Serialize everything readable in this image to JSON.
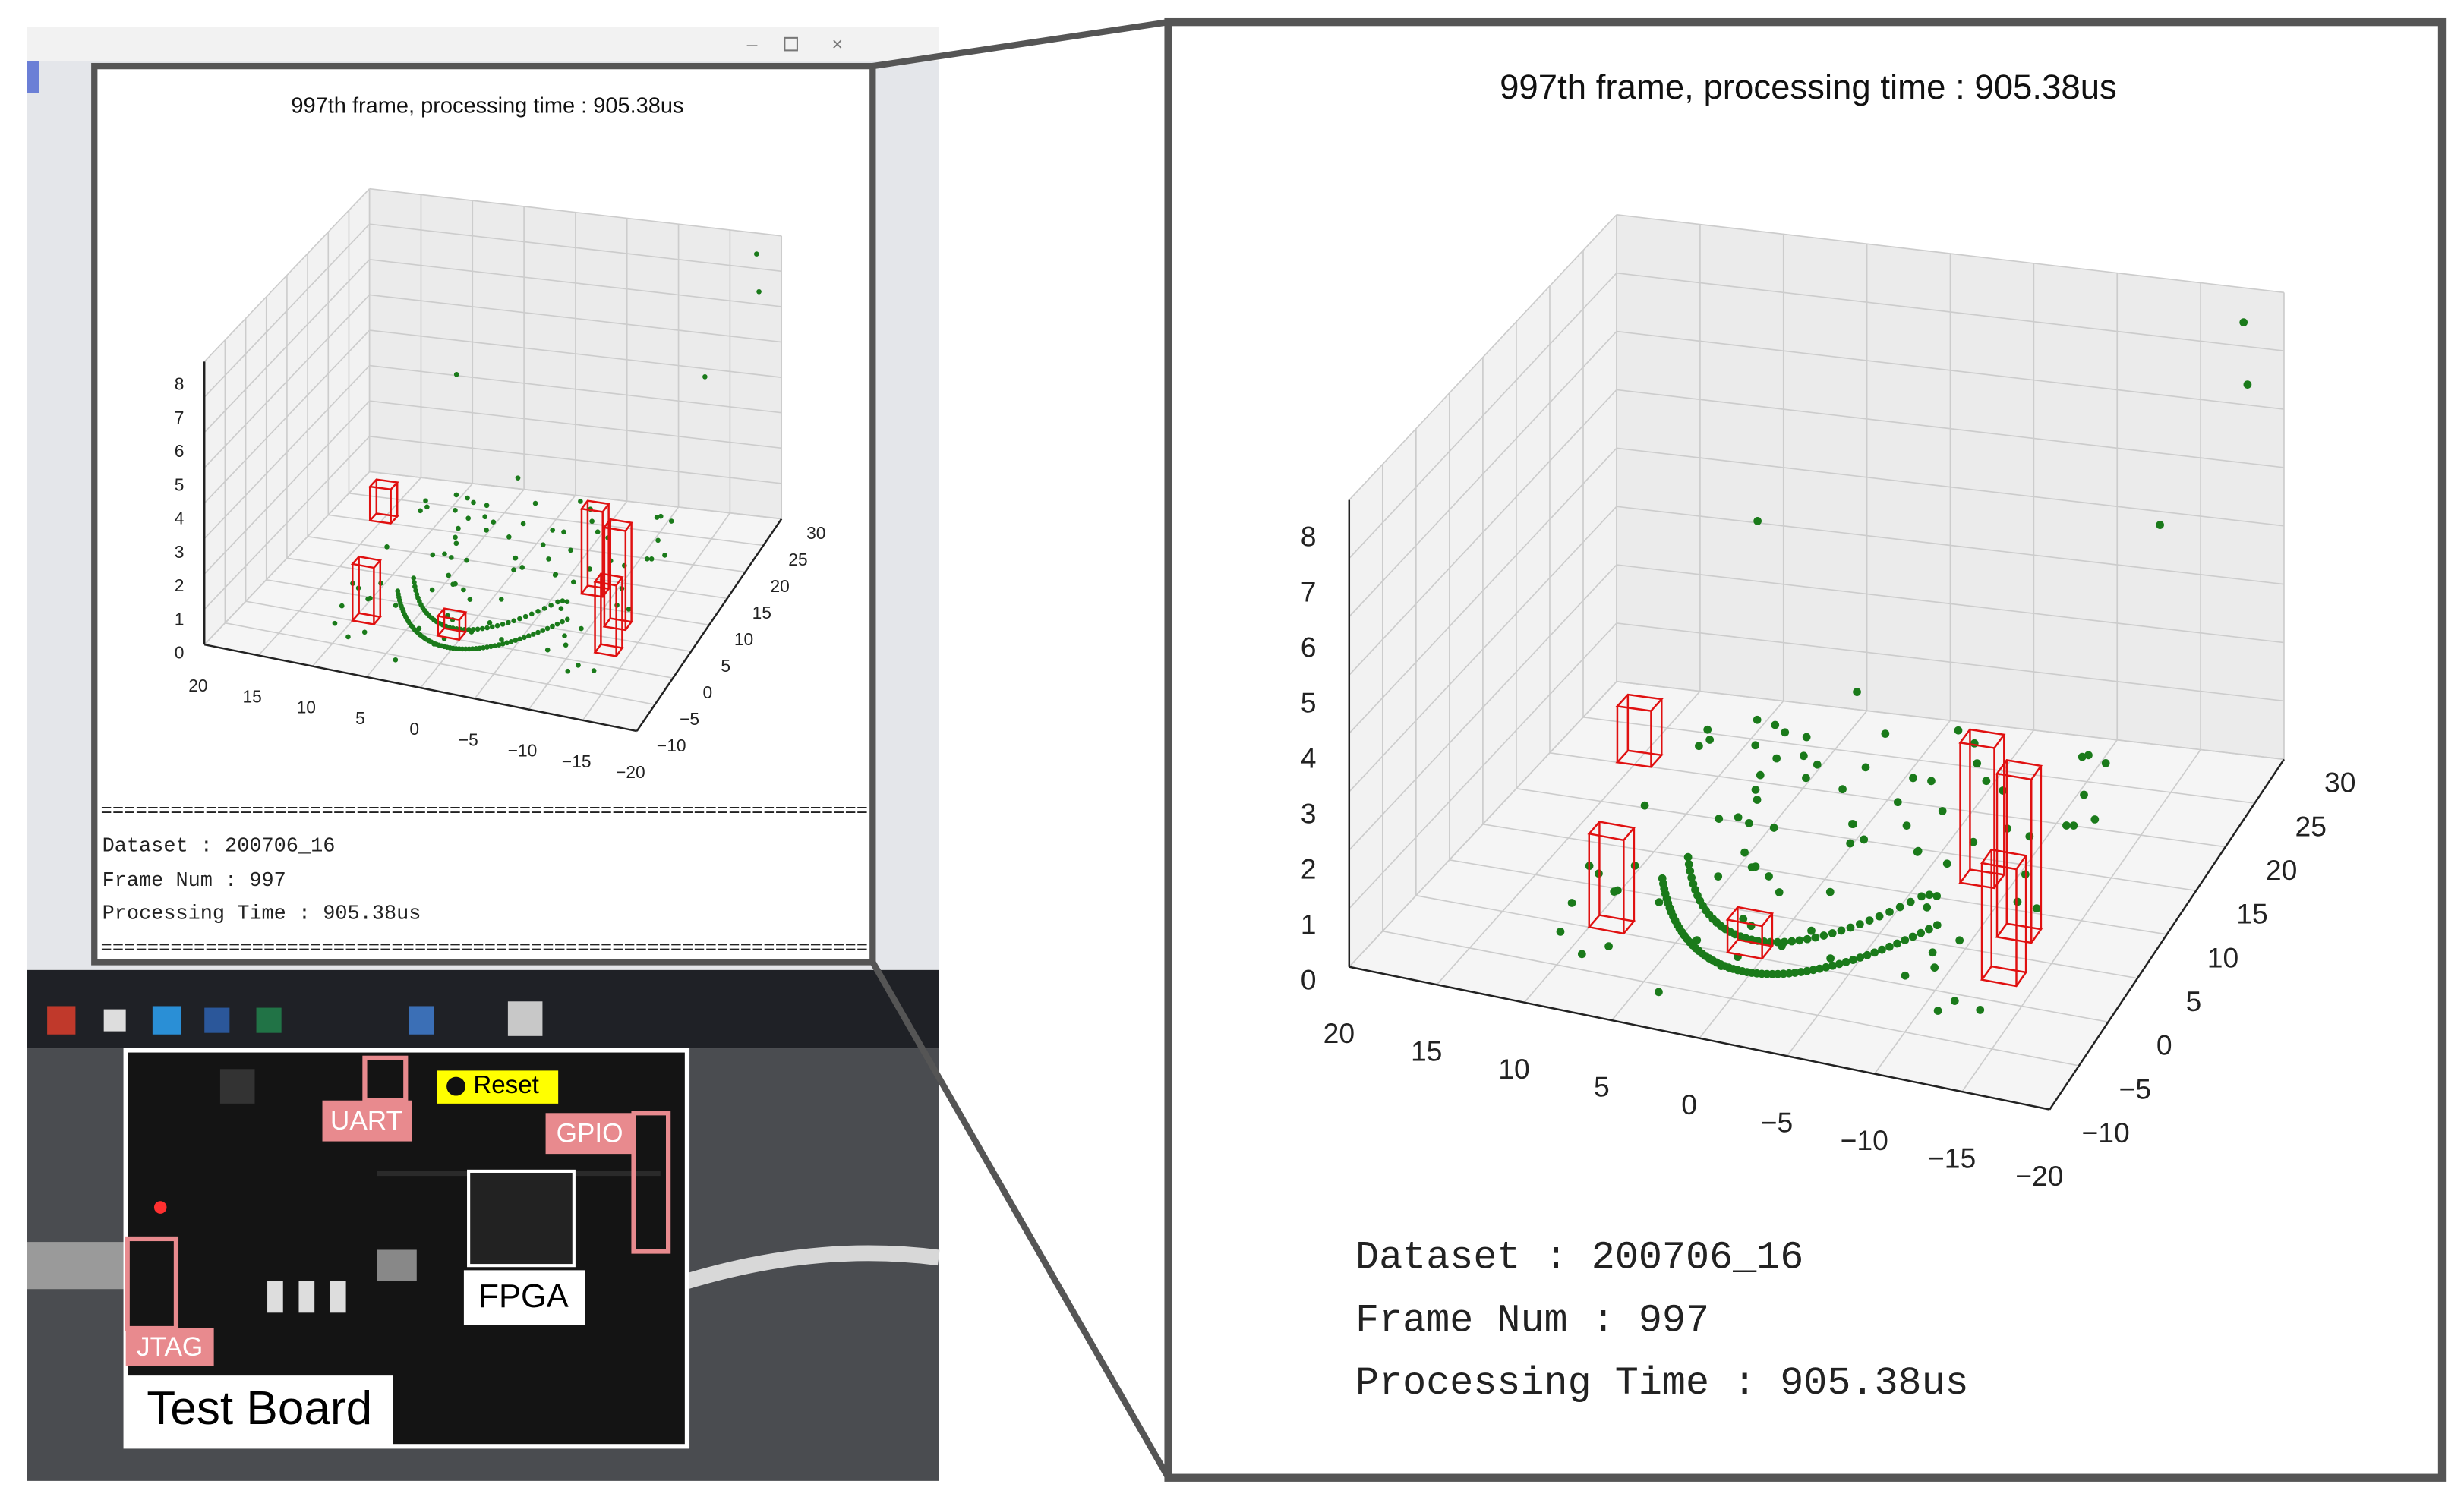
{
  "plot": {
    "title": "997th frame, processing time : 905.38us",
    "z_ticks": [
      "0",
      "1",
      "2",
      "3",
      "4",
      "5",
      "6",
      "7",
      "8"
    ],
    "x_ticks": [
      "20",
      "15",
      "10",
      "5",
      "0",
      "−5",
      "−10",
      "−15",
      "−20"
    ],
    "y_ticks": [
      "−10",
      "−5",
      "0",
      "5",
      "10",
      "15",
      "20",
      "25",
      "30"
    ]
  },
  "console": {
    "separator": "==================================================================",
    "lines": [
      "Dataset : 200706_16",
      "Frame Num : 997",
      "Processing Time : 905.38us"
    ]
  },
  "board": {
    "reset": "Reset",
    "uart": "UART",
    "gpio": "GPIO",
    "fpga": "FPGA",
    "jtag": "JTAG",
    "caption": "Test Board"
  }
}
